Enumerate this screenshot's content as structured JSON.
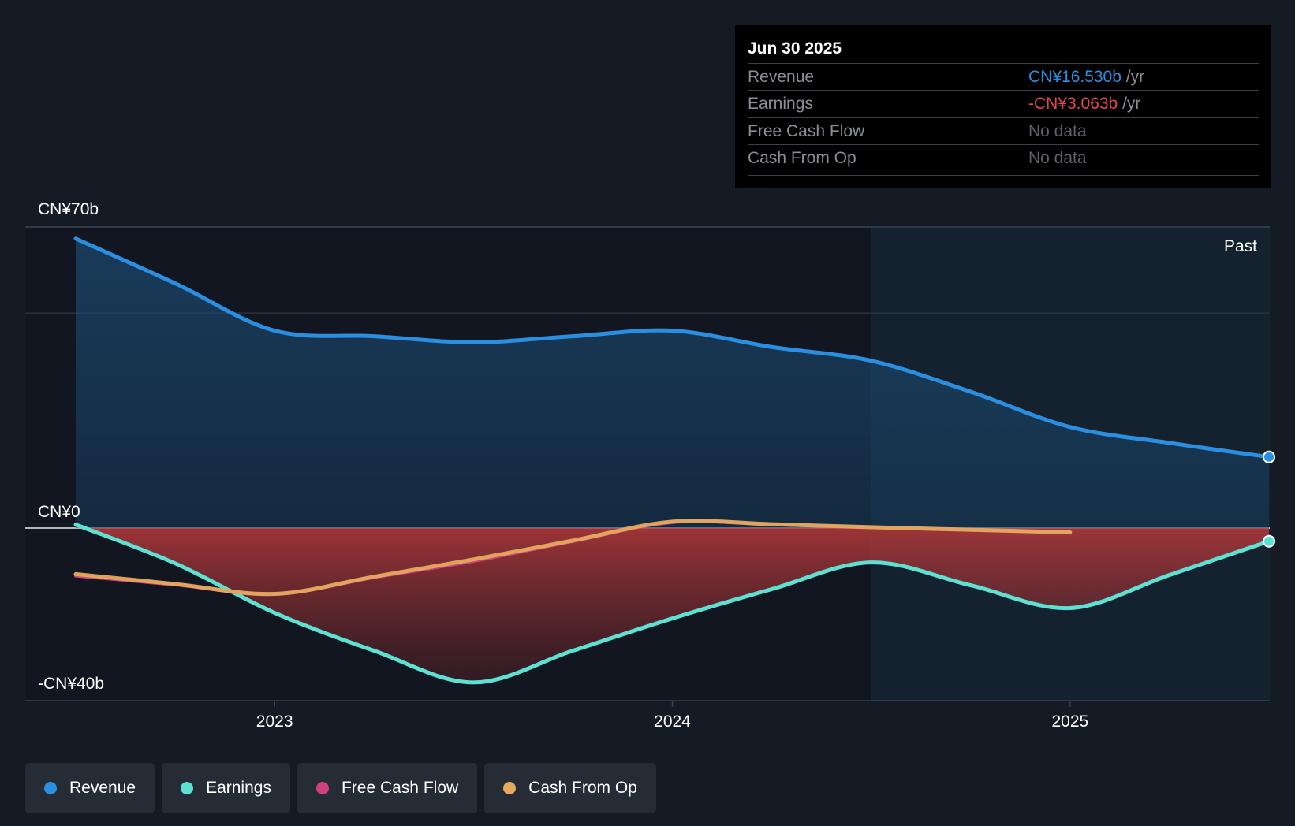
{
  "chart_data": {
    "type": "line",
    "y_unit": "CN¥ billions",
    "ylim": [
      -40,
      70
    ],
    "y_tick_labels": [
      {
        "value": 70,
        "label": "CN¥70b"
      },
      {
        "value": 0,
        "label": "CN¥0"
      },
      {
        "value": -40,
        "label": "-CN¥40b"
      }
    ],
    "x_tick_labels": [
      {
        "value": 2023.0,
        "label": "2023"
      },
      {
        "value": 2024.0,
        "label": "2024"
      },
      {
        "value": 2025.0,
        "label": "2025"
      }
    ],
    "xlim": [
      2022.37,
      2025.5
    ],
    "past_label": "Past",
    "past_start": 2024.5,
    "series": [
      {
        "name": "Revenue",
        "color": "#2a8fe0",
        "points": [
          [
            2022.5,
            67.3
          ],
          [
            2022.75,
            56.9
          ],
          [
            2023.0,
            45.9
          ],
          [
            2023.25,
            44.6
          ],
          [
            2023.5,
            43.2
          ],
          [
            2023.75,
            44.6
          ],
          [
            2024.0,
            45.9
          ],
          [
            2024.25,
            42.1
          ],
          [
            2024.5,
            38.9
          ],
          [
            2024.75,
            31.7
          ],
          [
            2025.0,
            23.5
          ],
          [
            2025.25,
            19.8
          ],
          [
            2025.5,
            16.53
          ]
        ]
      },
      {
        "name": "Earnings",
        "color": "#5ce1d2",
        "points": [
          [
            2022.5,
            0.8
          ],
          [
            2022.75,
            -8.2
          ],
          [
            2023.0,
            -19.7
          ],
          [
            2023.25,
            -28.5
          ],
          [
            2023.5,
            -35.9
          ],
          [
            2023.75,
            -28.5
          ],
          [
            2024.0,
            -21.0
          ],
          [
            2024.25,
            -14.2
          ],
          [
            2024.5,
            -8.0
          ],
          [
            2024.75,
            -13.3
          ],
          [
            2025.0,
            -18.6
          ],
          [
            2025.25,
            -10.9
          ],
          [
            2025.5,
            -3.063
          ]
        ]
      },
      {
        "name": "Free Cash Flow",
        "color": "#d0407f",
        "points": [
          [
            2022.5,
            -11.1
          ],
          [
            2022.75,
            -13.2
          ],
          [
            2023.0,
            -15.4
          ],
          [
            2023.25,
            -11.5
          ],
          [
            2023.5,
            -7.7
          ],
          [
            2023.75,
            -3.1
          ],
          [
            2024.0,
            1.3
          ],
          [
            2024.25,
            0.8
          ],
          [
            2024.5,
            0.1
          ],
          [
            2024.75,
            -0.5
          ],
          [
            2025.0,
            -1.0
          ]
        ]
      },
      {
        "name": "Cash From Op",
        "color": "#e4aa5e",
        "points": [
          [
            2022.5,
            -10.7
          ],
          [
            2022.75,
            -13.0
          ],
          [
            2023.0,
            -15.3
          ],
          [
            2023.25,
            -11.3
          ],
          [
            2023.5,
            -7.3
          ],
          [
            2023.75,
            -2.9
          ],
          [
            2024.0,
            1.5
          ],
          [
            2024.25,
            0.9
          ],
          [
            2024.5,
            0.2
          ],
          [
            2024.75,
            -0.4
          ],
          [
            2025.0,
            -1.0
          ]
        ]
      }
    ]
  },
  "tooltip": {
    "date": "Jun 30 2025",
    "rows": [
      {
        "label": "Revenue",
        "value": "CN¥16.530b",
        "unit": "/yr",
        "color": "#2a8fe0"
      },
      {
        "label": "Earnings",
        "value": "-CN¥3.063b",
        "unit": "/yr",
        "color": "#e6474f"
      },
      {
        "label": "Free Cash Flow",
        "value": "No data",
        "unit": "",
        "color": "#5d6168"
      },
      {
        "label": "Cash From Op",
        "value": "No data",
        "unit": "",
        "color": "#5d6168"
      }
    ]
  },
  "legend": [
    {
      "label": "Revenue",
      "color": "#2a8fe0"
    },
    {
      "label": "Earnings",
      "color": "#5ce1d2"
    },
    {
      "label": "Free Cash Flow",
      "color": "#d0407f"
    },
    {
      "label": "Cash From Op",
      "color": "#e4aa5e"
    }
  ]
}
